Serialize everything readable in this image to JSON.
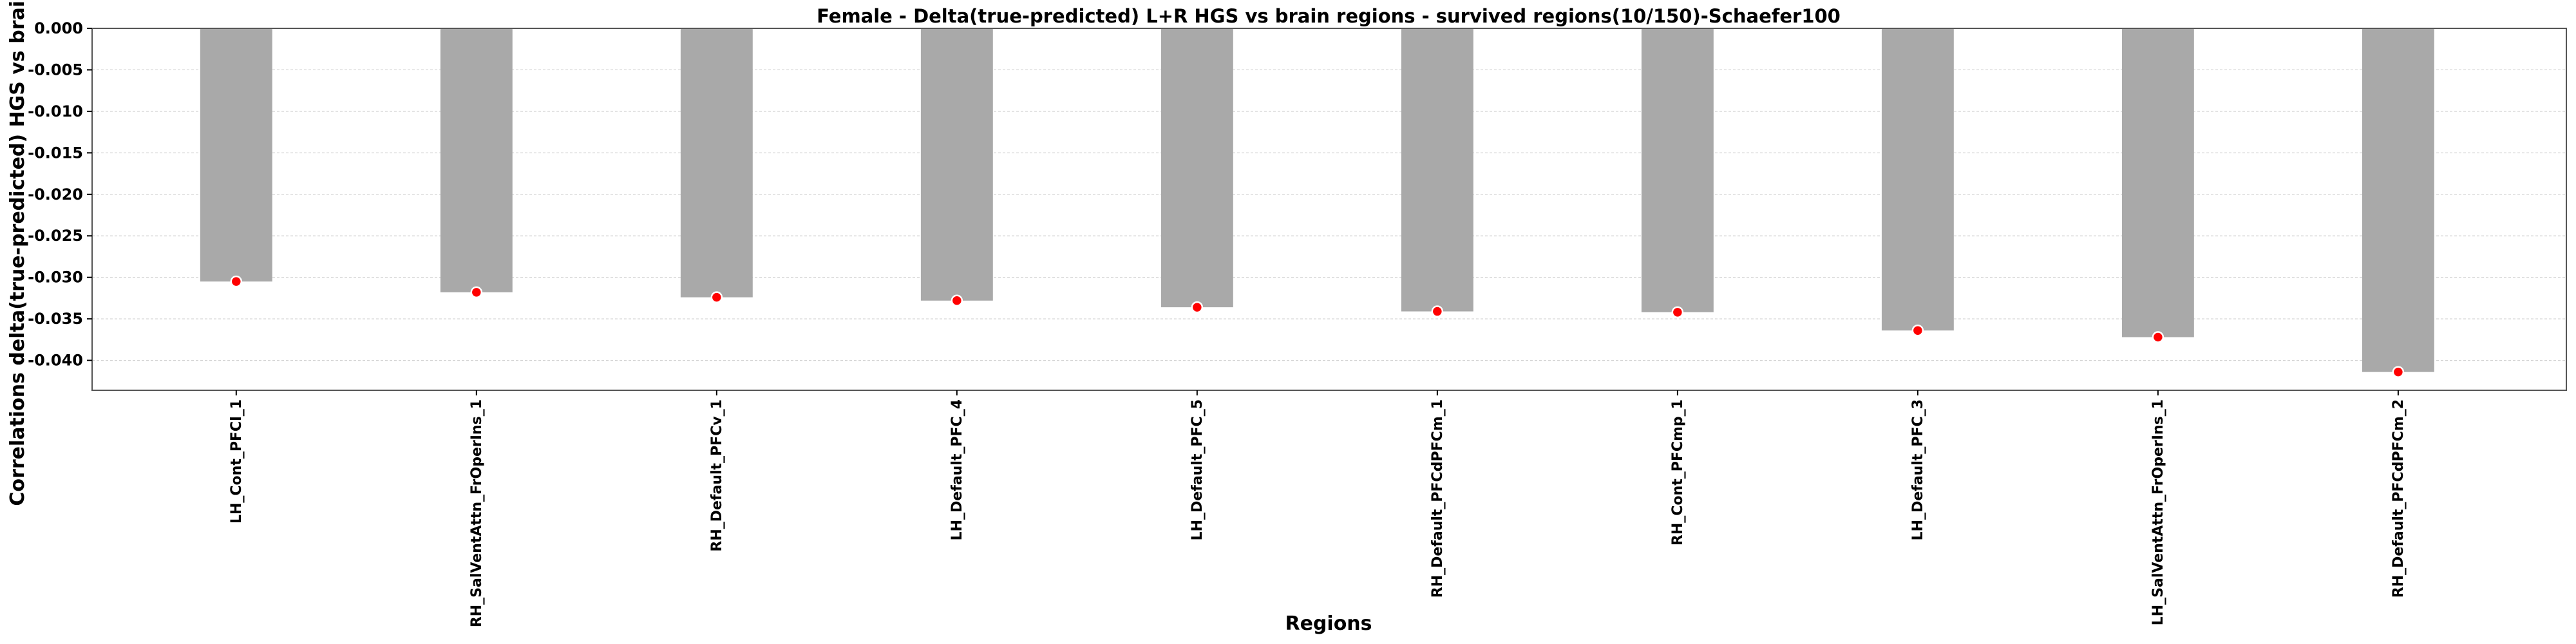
{
  "chart_data": {
    "type": "bar",
    "title": "Female - Delta(true-predicted) L+R HGS vs brain regions - survived regions(10/150)-Schaefer100",
    "xlabel": "Regions",
    "ylabel": "Correlations delta(true-predicted) HGS vs brain r",
    "categories": [
      "LH_Cont_PFCl_1",
      "RH_SalVentAttn_FrOperIns_1",
      "RH_Default_PFCv_1",
      "LH_Default_PFC_4",
      "LH_Default_PFC_5",
      "RH_Default_PFCdPFCm_1",
      "RH_Cont_PFCmp_1",
      "LH_Default_PFC_3",
      "LH_SalVentAttn_FrOperIns_1",
      "RH_Default_PFCdPFCm_2"
    ],
    "values": [
      -0.0305,
      -0.0318,
      -0.0324,
      -0.0328,
      -0.0336,
      -0.0341,
      -0.0342,
      -0.0364,
      -0.0372,
      -0.0414
    ],
    "yticks": [
      "0.000",
      "-0.005",
      "-0.010",
      "-0.015",
      "-0.020",
      "-0.025",
      "-0.030",
      "-0.035",
      "-0.040"
    ],
    "ylim": [
      -0.0436,
      0.0
    ],
    "grid": true,
    "colors": {
      "bar": "#a9a9a9",
      "marker": "#ff0000",
      "marker_edge": "#ffffff"
    }
  }
}
